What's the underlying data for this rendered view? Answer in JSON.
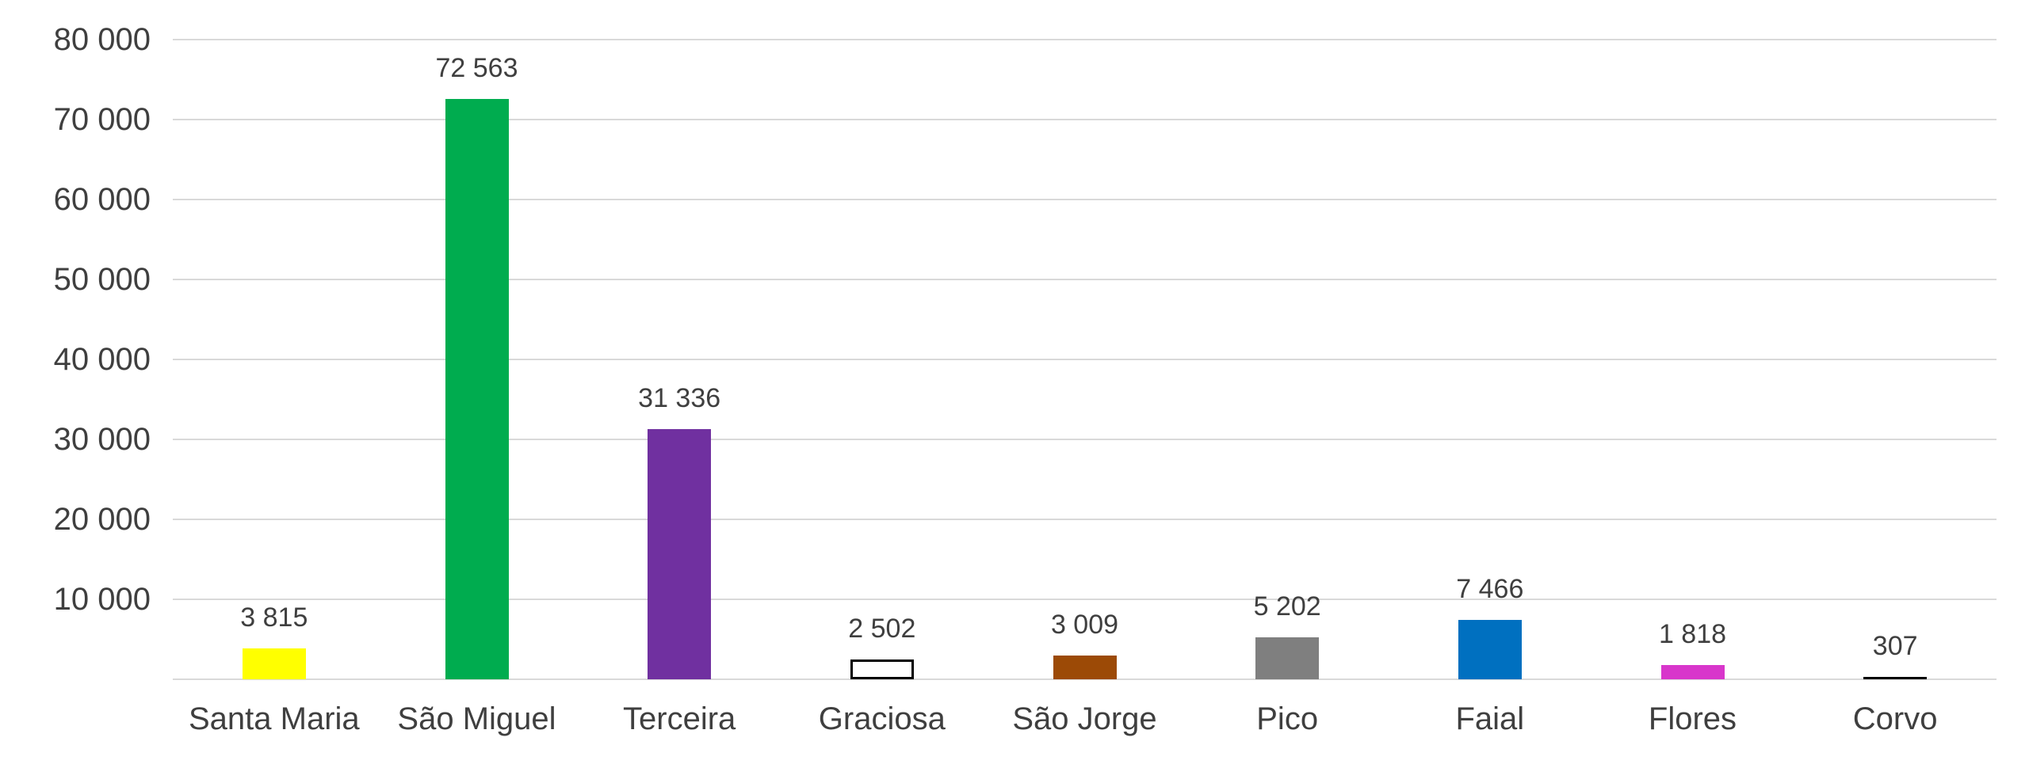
{
  "chart_data": {
    "type": "bar",
    "title": "",
    "xlabel": "",
    "ylabel": "",
    "categories": [
      "Santa Maria",
      "São Miguel",
      "Terceira",
      "Graciosa",
      "São Jorge",
      "Pico",
      "Faial",
      "Flores",
      "Corvo"
    ],
    "values": [
      3815,
      72563,
      31336,
      2502,
      3009,
      5202,
      7466,
      1818,
      307
    ],
    "value_labels": [
      "3 815",
      "72 563",
      "31 336",
      "2 502",
      "3 009",
      "5 202",
      "7 466",
      "1 818",
      "307"
    ],
    "bar_colors": [
      "#FFFF00",
      "#00AC4F",
      "#7030A0",
      "#FFFFFF",
      "#9C4A06",
      "#7F7F7F",
      "#0070C0",
      "#D836CB",
      "#000000"
    ],
    "bar_border_colors": [
      null,
      null,
      null,
      "#000000",
      null,
      null,
      null,
      null,
      null
    ],
    "ylim": [
      0,
      80000
    ],
    "y_tick_step": 10000,
    "y_tick_labels": [
      "10 000",
      "20 000",
      "30 000",
      "40 000",
      "50 000",
      "60 000",
      "70 000",
      "80 000"
    ],
    "y_tick_values": [
      10000,
      20000,
      30000,
      40000,
      50000,
      60000,
      70000,
      80000
    ],
    "grid": true,
    "gridline_color": "#D9D9D9",
    "baseline_shown": true,
    "legend": "none",
    "text_color": "#3F3F3F",
    "number_format": "thousands separated by space"
  }
}
